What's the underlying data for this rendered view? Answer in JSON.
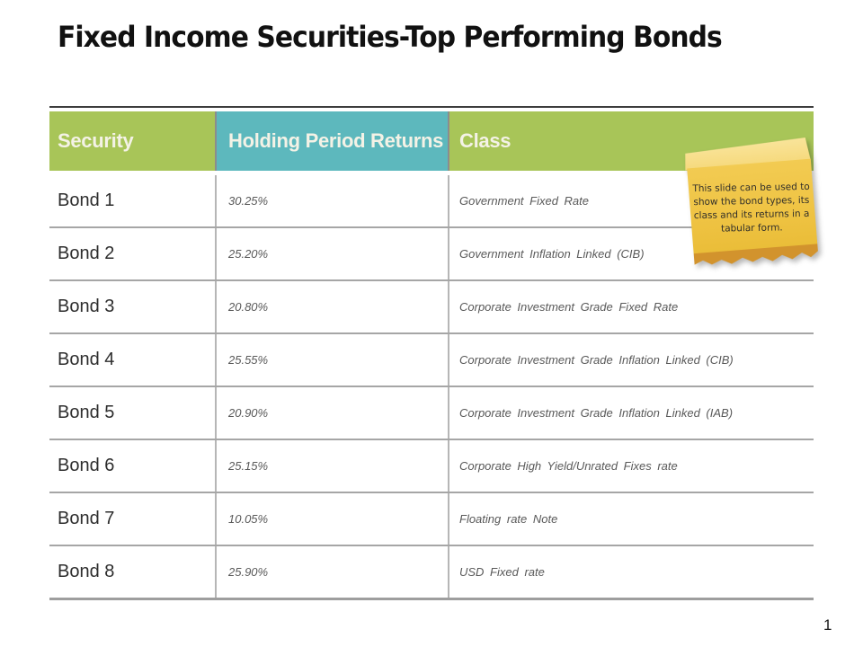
{
  "slide": {
    "title": "Fixed Income Securities-Top Performing Bonds",
    "page_number": "1"
  },
  "table": {
    "columns": [
      "Security",
      "Holding Period Returns",
      "Class"
    ],
    "rows": [
      {
        "security": "Bond 1",
        "returns": "30.25%",
        "class": "Government Fixed Rate"
      },
      {
        "security": "Bond 2",
        "returns": "25.20%",
        "class": "Government Inflation Linked (CIB)"
      },
      {
        "security": "Bond 3",
        "returns": "20.80%",
        "class": "Corporate Investment Grade Fixed Rate"
      },
      {
        "security": "Bond 4",
        "returns": "25.55%",
        "class": "Corporate Investment Grade Inflation Linked (CIB)"
      },
      {
        "security": "Bond 5",
        "returns": "20.90%",
        "class": "Corporate Investment Grade Inflation Linked (IAB)"
      },
      {
        "security": "Bond 6",
        "returns": "25.15%",
        "class": "Corporate High Yield/Unrated Fixes rate"
      },
      {
        "security": "Bond 7",
        "returns": "10.05%",
        "class": "Floating rate Note"
      },
      {
        "security": "Bond 8",
        "returns": "25.90%",
        "class": "USD Fixed rate"
      }
    ]
  },
  "note": {
    "text": "This slide can be used to show the bond types, its class and its returns in a tabular form."
  },
  "colors": {
    "header_green": "#a8c558",
    "header_teal": "#5db8bd",
    "note_yellow": "#efc343",
    "note_fold": "#f6d97c",
    "note_torn": "#d2932d",
    "header_text": "#f4f2e6",
    "text_gray": "#595959"
  }
}
